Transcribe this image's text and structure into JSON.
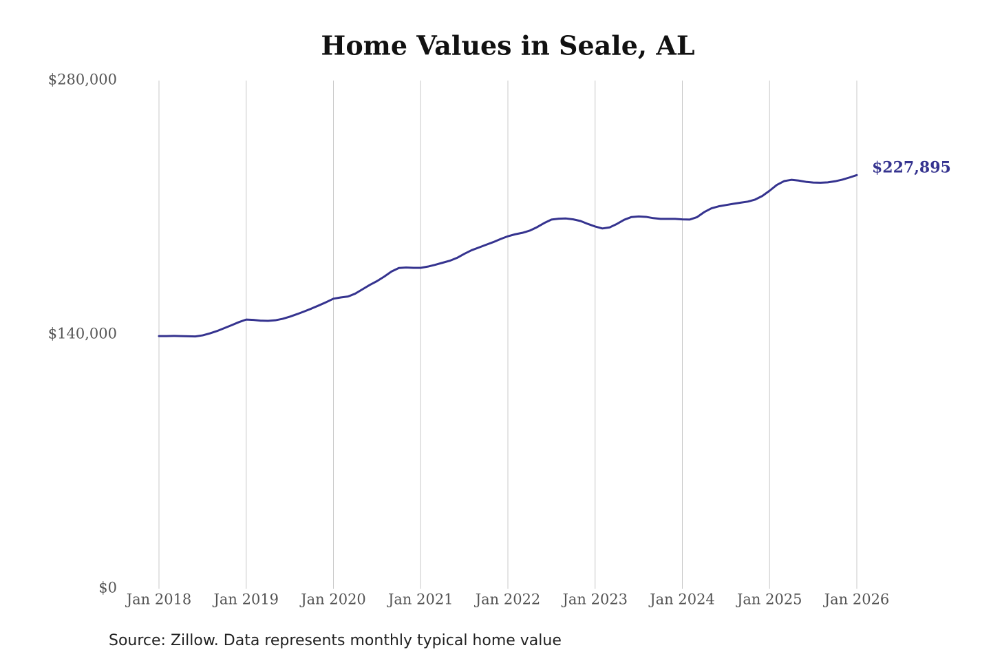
{
  "chart_data": {
    "type": "line",
    "title": "Home Values in Seale, AL",
    "source": "Source: Zillow. Data represents monthly typical home value",
    "x": [
      "2018-01",
      "2018-02",
      "2018-03",
      "2018-04",
      "2018-05",
      "2018-06",
      "2018-07",
      "2018-08",
      "2018-09",
      "2018-10",
      "2018-11",
      "2018-12",
      "2019-01",
      "2019-02",
      "2019-03",
      "2019-04",
      "2019-05",
      "2019-06",
      "2019-07",
      "2019-08",
      "2019-09",
      "2019-10",
      "2019-11",
      "2019-12",
      "2020-01",
      "2020-02",
      "2020-03",
      "2020-04",
      "2020-05",
      "2020-06",
      "2020-07",
      "2020-08",
      "2020-09",
      "2020-10",
      "2020-11",
      "2020-12",
      "2021-01",
      "2021-02",
      "2021-03",
      "2021-04",
      "2021-05",
      "2021-06",
      "2021-07",
      "2021-08",
      "2021-09",
      "2021-10",
      "2021-11",
      "2021-12",
      "2022-01",
      "2022-02",
      "2022-03",
      "2022-04",
      "2022-05",
      "2022-06",
      "2022-07",
      "2022-08",
      "2022-09",
      "2022-10",
      "2022-11",
      "2022-12",
      "2023-01",
      "2023-02",
      "2023-03",
      "2023-04",
      "2023-05",
      "2023-06",
      "2023-07",
      "2023-08",
      "2023-09",
      "2023-10",
      "2023-11",
      "2023-12",
      "2024-01",
      "2024-02",
      "2024-03",
      "2024-04",
      "2024-05",
      "2024-06",
      "2024-07",
      "2024-08",
      "2024-09",
      "2024-10",
      "2024-11",
      "2024-12",
      "2025-01",
      "2025-02",
      "2025-03",
      "2025-04",
      "2025-05",
      "2025-06",
      "2025-07",
      "2025-08",
      "2025-09",
      "2025-10",
      "2025-11",
      "2025-12",
      "2026-01"
    ],
    "series": [
      {
        "color": "#35338f",
        "values": [
          139200,
          139200,
          139300,
          139200,
          139100,
          139000,
          139600,
          140700,
          142000,
          143600,
          145200,
          146900,
          148300,
          148100,
          147700,
          147600,
          147900,
          148700,
          149900,
          151300,
          152800,
          154400,
          156100,
          157900,
          159800,
          160500,
          161000,
          162600,
          165000,
          167400,
          169500,
          172000,
          174800,
          176700,
          177000,
          176800,
          176800,
          177500,
          178500,
          179600,
          180700,
          182300,
          184500,
          186500,
          188000,
          189500,
          191000,
          192700,
          194200,
          195300,
          196100,
          197300,
          199200,
          201500,
          203400,
          203900,
          204000,
          203500,
          202600,
          201000,
          199600,
          198500,
          199100,
          201000,
          203300,
          204800,
          205100,
          204900,
          204200,
          203800,
          203800,
          203800,
          203500,
          203400,
          204700,
          207500,
          209600,
          210700,
          211400,
          212100,
          212700,
          213300,
          214400,
          216400,
          219300,
          222500,
          224600,
          225300,
          224900,
          224200,
          223800,
          223700,
          223900,
          224500,
          225400,
          226600,
          227895
        ]
      }
    ],
    "annotations": [
      {
        "x": "2026-01",
        "label": "$227,895"
      }
    ],
    "ylim": [
      0,
      280000
    ],
    "yticks": [
      {
        "value": 0,
        "label": "$0"
      },
      {
        "value": 140000,
        "label": "$140,000"
      },
      {
        "value": 280000,
        "label": "$280,000"
      }
    ],
    "xticks": [
      {
        "value": "2018-01",
        "label": "Jan 2018"
      },
      {
        "value": "2019-01",
        "label": "Jan 2019"
      },
      {
        "value": "2020-01",
        "label": "Jan 2020"
      },
      {
        "value": "2021-01",
        "label": "Jan 2021"
      },
      {
        "value": "2022-01",
        "label": "Jan 2022"
      },
      {
        "value": "2023-01",
        "label": "Jan 2023"
      },
      {
        "value": "2024-01",
        "label": "Jan 2024"
      },
      {
        "value": "2025-01",
        "label": "Jan 2025"
      },
      {
        "value": "2026-01",
        "label": "Jan 2026"
      }
    ],
    "grid": "x"
  }
}
